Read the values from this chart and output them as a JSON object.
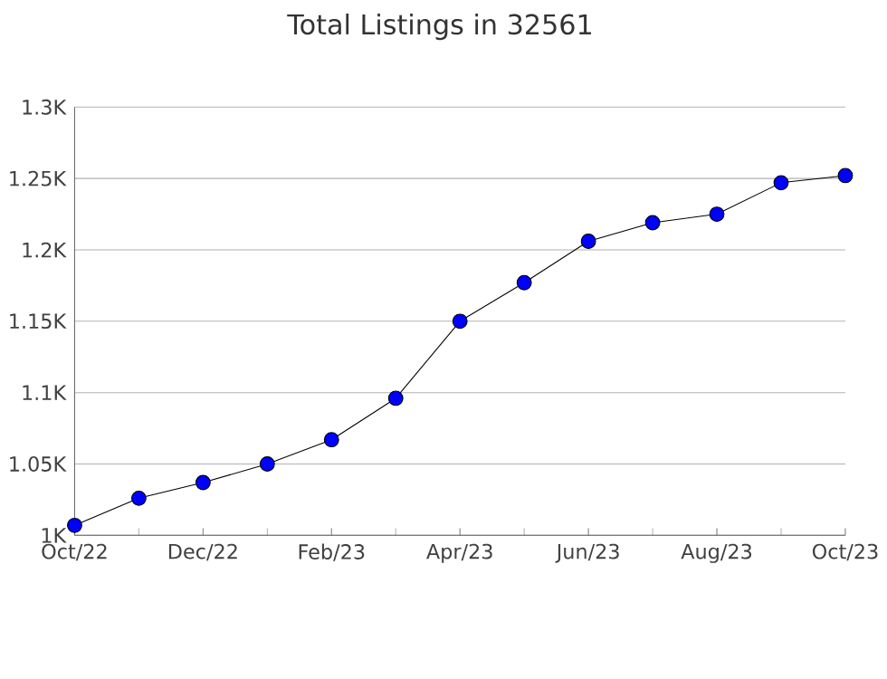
{
  "chart_data": {
    "type": "line",
    "title": "Total Listings in 32561",
    "x": [
      "2022-10",
      "2022-11",
      "2022-12",
      "2023-01",
      "2023-02",
      "2023-03",
      "2023-04",
      "2023-05",
      "2023-06",
      "2023-07",
      "2023-08",
      "2023-09",
      "2023-10"
    ],
    "series": [
      {
        "color": "#0000ff",
        "values": [
          1007,
          1026,
          1037,
          1050,
          1067,
          1096,
          1150,
          1177,
          1206,
          1219,
          1225,
          1247,
          1252
        ]
      }
    ],
    "xlim": [
      "2022-10",
      "2023-10"
    ],
    "xticks": [
      {
        "value": "2022-10",
        "label": "Oct/22"
      },
      {
        "value": "2022-12",
        "label": "Dec/22"
      },
      {
        "value": "2023-02",
        "label": "Feb/23"
      },
      {
        "value": "2023-04",
        "label": "Apr/23"
      },
      {
        "value": "2023-06",
        "label": "Jun/23"
      },
      {
        "value": "2023-08",
        "label": "Aug/23"
      },
      {
        "value": "2023-10",
        "label": "Oct/23"
      }
    ],
    "ylim": [
      1000,
      1300
    ],
    "yticks": [
      {
        "value": 1000,
        "label": "1K"
      },
      {
        "value": 1050,
        "label": "1.05K"
      },
      {
        "value": 1100,
        "label": "1.1K"
      },
      {
        "value": 1150,
        "label": "1.15K"
      },
      {
        "value": 1200,
        "label": "1.2K"
      },
      {
        "value": 1250,
        "label": "1.25K"
      },
      {
        "value": 1300,
        "label": "1.3K"
      }
    ],
    "grid": "y",
    "marker": "circle",
    "line_style": "solid"
  }
}
